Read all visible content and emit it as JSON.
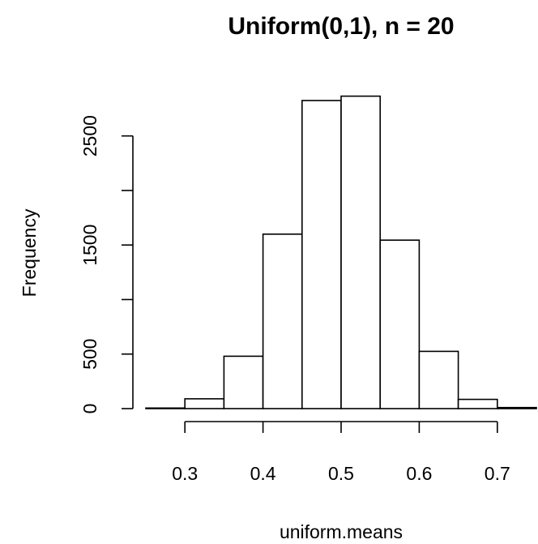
{
  "chart_data": {
    "type": "histogram",
    "title": "Uniform(0,1), n = 20",
    "xlabel": "uniform.means",
    "ylabel": "Frequency",
    "bins": [
      {
        "start": 0.25,
        "end": 0.3,
        "count": 5
      },
      {
        "start": 0.3,
        "end": 0.35,
        "count": 90
      },
      {
        "start": 0.35,
        "end": 0.4,
        "count": 480
      },
      {
        "start": 0.4,
        "end": 0.45,
        "count": 1600
      },
      {
        "start": 0.45,
        "end": 0.5,
        "count": 2825
      },
      {
        "start": 0.5,
        "end": 0.55,
        "count": 2865
      },
      {
        "start": 0.55,
        "end": 0.6,
        "count": 1545
      },
      {
        "start": 0.6,
        "end": 0.65,
        "count": 525
      },
      {
        "start": 0.65,
        "end": 0.7,
        "count": 85
      },
      {
        "start": 0.7,
        "end": 0.75,
        "count": 10
      }
    ],
    "xticks": [
      0.3,
      0.4,
      0.5,
      0.6,
      0.7
    ],
    "xtick_labels": [
      "0.3",
      "0.4",
      "0.5",
      "0.6",
      "0.7"
    ],
    "yticks": [
      0,
      500,
      1000,
      1500,
      2000,
      2500
    ],
    "ytick_labels": [
      "0",
      "500",
      "1500",
      "2500"
    ],
    "labeled_yticks": [
      0,
      500,
      1500,
      2500
    ],
    "xlim": [
      0.25,
      0.75
    ],
    "ylim": [
      0,
      2900
    ],
    "grid": false
  }
}
